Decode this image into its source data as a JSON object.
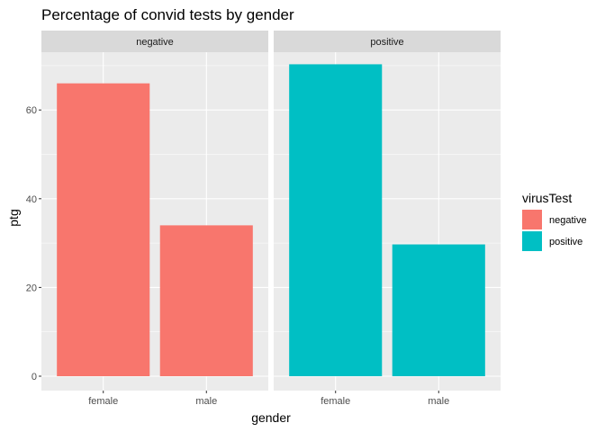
{
  "chart_data": {
    "type": "bar",
    "title": "Percentage of convid tests by gender",
    "xlabel": "gender",
    "ylabel": "ptg",
    "ylim": [
      0,
      72
    ],
    "yticks": [
      0,
      20,
      40,
      60
    ],
    "categories": [
      "female",
      "male"
    ],
    "facets": [
      {
        "name": "negative",
        "values": [
          66,
          34
        ],
        "color": "#F8766D"
      },
      {
        "name": "positive",
        "values": [
          70.3,
          29.7
        ],
        "color": "#00BFC4"
      }
    ],
    "legend": {
      "title": "virusTest",
      "position": "right",
      "items": [
        {
          "label": "negative",
          "color": "#F8766D"
        },
        {
          "label": "positive",
          "color": "#00BFC4"
        }
      ]
    },
    "grid": true,
    "panel_background": "#EBEBEB",
    "strip_background": "#D9D9D9"
  }
}
